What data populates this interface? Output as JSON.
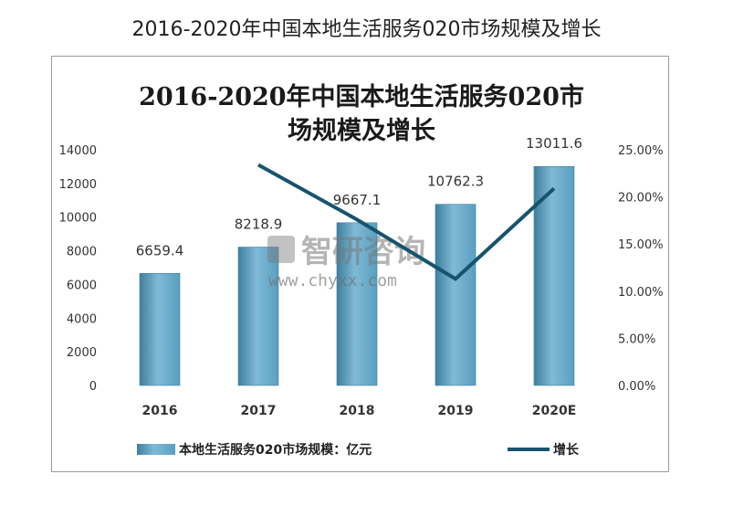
{
  "page_title": "2016-2020年中国本地生活服务020市场规模及增长",
  "watermark": {
    "brand": "智研咨询",
    "url": "www.chyxx.com"
  },
  "colors": {
    "bar": "#5a9fc0",
    "bar_light": "#7fbad6",
    "bar_dark": "#3f7f9f",
    "line": "#16546e"
  },
  "chart_data": {
    "type": "bar",
    "title_lines": [
      "2016-2020年中国本地生活服务020市",
      "场规模及增长"
    ],
    "categories": [
      "2016",
      "2017",
      "2018",
      "2019",
      "2020E"
    ],
    "series": [
      {
        "name": "本地生活服务020市场规模：亿元",
        "axis": "left",
        "type": "bar",
        "values": [
          6659.4,
          8218.9,
          9667.1,
          10762.3,
          13011.6
        ],
        "labels": [
          "6659.4",
          "8218.9",
          "9667.1",
          "10762.3",
          "13011.6"
        ]
      },
      {
        "name": "增长",
        "axis": "right",
        "type": "line",
        "values": [
          null,
          23.4,
          17.6,
          11.3,
          20.9
        ]
      }
    ],
    "y_left": {
      "min": 0,
      "max": 14000,
      "ticks": [
        "0",
        "2000",
        "4000",
        "6000",
        "8000",
        "10000",
        "12000",
        "14000"
      ]
    },
    "y_right": {
      "min": 0,
      "max": 25,
      "ticks": [
        "0.00%",
        "5.00%",
        "10.00%",
        "15.00%",
        "20.00%",
        "25.00%"
      ]
    },
    "legend": "bottom",
    "grid": false
  }
}
